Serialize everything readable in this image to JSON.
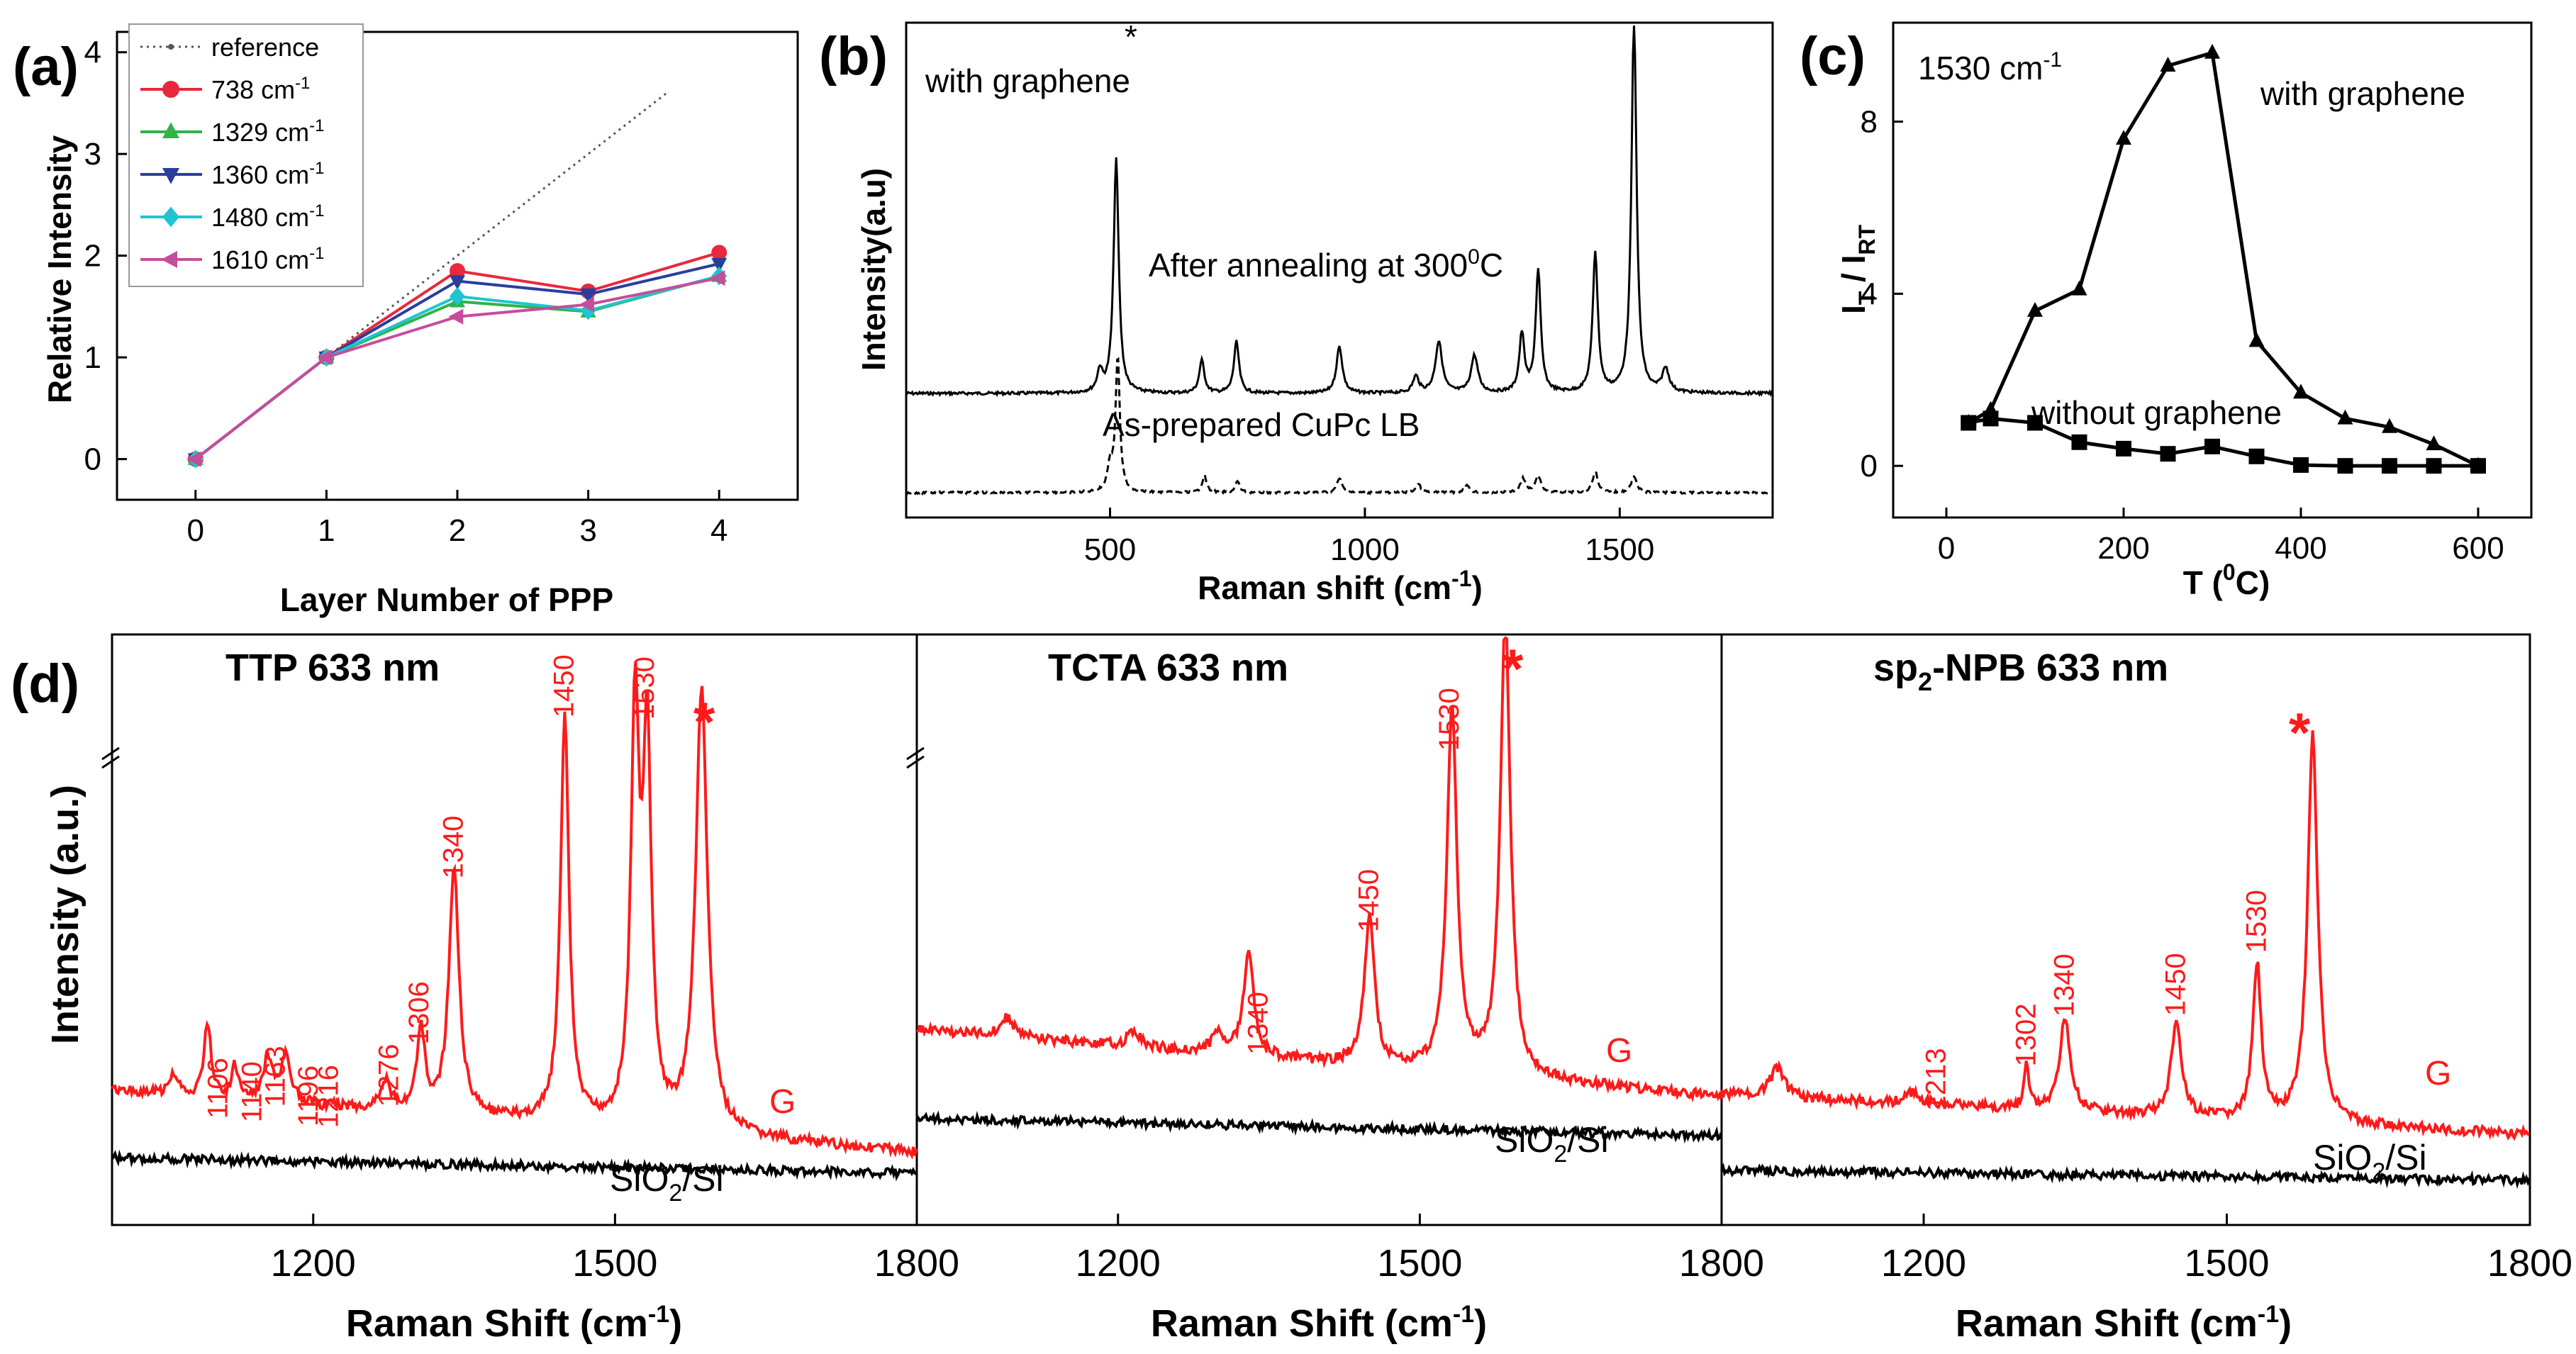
{
  "panels": {
    "a": {
      "label": "(a)"
    },
    "b": {
      "label": "(b)"
    },
    "c": {
      "label": "(c)"
    },
    "d": {
      "label": "(d)"
    }
  },
  "chart_data": [
    {
      "id": "a",
      "type": "line",
      "xlabel": "Layer Number of PPP",
      "ylabel": "Relative Intensity",
      "xlim": [
        -0.6,
        4.6
      ],
      "ylim": [
        -0.4,
        4.2
      ],
      "xticks": [
        0,
        1,
        2,
        3,
        4
      ],
      "yticks": [
        0,
        1,
        2,
        3,
        4
      ],
      "legend_position": "top-left",
      "reference": {
        "name": "reference",
        "x": [
          0,
          3.6
        ],
        "y": [
          0,
          3.6
        ],
        "color": "#555555"
      },
      "x": [
        0,
        1,
        2,
        3,
        4
      ],
      "series": [
        {
          "name": "738 cm",
          "sup": "-1",
          "marker": "circle",
          "color": "#e8283c",
          "values": [
            0,
            1,
            1.85,
            1.65,
            2.03
          ]
        },
        {
          "name": "1329 cm",
          "sup": "-1",
          "marker": "triangle-up",
          "color": "#2fb34a",
          "values": [
            0,
            1,
            1.55,
            1.45,
            1.8
          ]
        },
        {
          "name": "1360 cm",
          "sup": "-1",
          "marker": "triangle-down",
          "color": "#2a3e9c",
          "values": [
            0,
            1,
            1.75,
            1.62,
            1.92
          ]
        },
        {
          "name": "1480 cm",
          "sup": "-1",
          "marker": "diamond",
          "color": "#1fc4cf",
          "values": [
            0,
            1,
            1.6,
            1.46,
            1.8
          ]
        },
        {
          "name": "1610 cm",
          "sup": "-1",
          "marker": "triangle-left",
          "color": "#c64c9c",
          "values": [
            0,
            1,
            1.4,
            1.52,
            1.78
          ]
        }
      ]
    },
    {
      "id": "b",
      "type": "line",
      "xlabel": "Raman shift (cm",
      "xlabel_sup": "-1",
      "xlabel_end": ")",
      "ylabel": "Intensity(a.u)",
      "xlim": [
        100,
        1800
      ],
      "xticks": [
        500,
        1000,
        1500
      ],
      "annotations": {
        "with_graphene": "with graphene",
        "after_annealing": "After annealing at 300",
        "after_sup": "0",
        "after_end": "C",
        "as_prepared": "As-prepared CuPc LB",
        "star": "*"
      },
      "series": [
        {
          "name": "After annealing at 300°C",
          "style": "solid",
          "baseline": 0.0,
          "peaks": [
            [
              512,
              1.0,
              6
            ],
            [
              480,
              0.09,
              6
            ],
            [
              680,
              0.14,
              6
            ],
            [
              748,
              0.22,
              6
            ],
            [
              950,
              0.2,
              7
            ],
            [
              1100,
              0.07,
              7
            ],
            [
              1145,
              0.22,
              8
            ],
            [
              1215,
              0.16,
              8
            ],
            [
              1308,
              0.25,
              6
            ],
            [
              1340,
              0.52,
              6
            ],
            [
              1452,
              0.6,
              6
            ],
            [
              1528,
              1.6,
              6
            ],
            [
              1590,
              0.1,
              8
            ]
          ]
        },
        {
          "name": "As-prepared CuPc LB",
          "style": "dashed",
          "baseline": 0.0,
          "peaks": [
            [
              500,
              0.18,
              6
            ],
            [
              515,
              0.95,
              5
            ],
            [
              685,
              0.12,
              5
            ],
            [
              750,
              0.08,
              5
            ],
            [
              950,
              0.1,
              6
            ],
            [
              1105,
              0.06,
              6
            ],
            [
              1200,
              0.05,
              6
            ],
            [
              1310,
              0.1,
              6
            ],
            [
              1340,
              0.12,
              6
            ],
            [
              1452,
              0.15,
              6
            ],
            [
              1528,
              0.12,
              6
            ]
          ]
        }
      ]
    },
    {
      "id": "c",
      "type": "line",
      "title_text": "1530 cm",
      "title_sup": "-1",
      "xlabel": "T (",
      "xlabel_sup": "0",
      "xlabel_end": "C)",
      "ylabel": "I",
      "ylabel_sub1": "T",
      "ylabel_mid": " / I",
      "ylabel_sub2": "RT",
      "xlim": [
        -60,
        660
      ],
      "ylim": [
        -1.2,
        10.3
      ],
      "xticks": [
        0,
        200,
        400,
        600
      ],
      "yticks": [
        0,
        4,
        8
      ],
      "series": [
        {
          "name": "with graphene",
          "marker": "triangle-up",
          "color": "#000000",
          "x": [
            25,
            50,
            100,
            150,
            200,
            250,
            300,
            350,
            400,
            450,
            500,
            550,
            600
          ],
          "values": [
            1.0,
            1.3,
            3.6,
            4.1,
            7.6,
            9.3,
            9.6,
            2.9,
            1.7,
            1.1,
            0.9,
            0.5,
            0.0
          ]
        },
        {
          "name": "without graphene",
          "marker": "square",
          "color": "#000000",
          "x": [
            25,
            50,
            100,
            150,
            200,
            250,
            300,
            350,
            400,
            450,
            500,
            550,
            600
          ],
          "values": [
            1.0,
            1.1,
            1.0,
            0.55,
            0.4,
            0.28,
            0.45,
            0.22,
            0.02,
            0.0,
            0.0,
            0.0,
            0.0
          ]
        }
      ]
    },
    {
      "id": "d",
      "type": "line",
      "ylabel": "Intensity (a.u.)",
      "xlabel": "Raman Shift (cm",
      "xlabel_sup": "-1",
      "xlabel_end": ")",
      "xlim": [
        1000,
        1800
      ],
      "xticks": [
        1200,
        1500,
        1800
      ],
      "subpanels": [
        {
          "title": "TTP 633 nm",
          "graphene_label": "G",
          "substrate_label": "SiO",
          "substrate_sub": "2",
          "substrate_end": "/Si",
          "star": "*",
          "peak_labels": [
            "1106",
            "1140",
            "1163",
            "1196",
            "1216",
            "1276",
            "1306",
            "1340",
            "1450",
            "1530"
          ],
          "peak_positions": [
            1106,
            1140,
            1163,
            1196,
            1216,
            1276,
            1306,
            1340,
            1450,
            1530
          ],
          "peaks": [
            [
              1062,
              0.12,
              4
            ],
            [
              1095,
              0.42,
              4
            ],
            [
              1122,
              0.18,
              4
            ],
            [
              1155,
              0.25,
              5
            ],
            [
              1173,
              0.28,
              5
            ],
            [
              1272,
              0.15,
              6
            ],
            [
              1307,
              0.45,
              5
            ],
            [
              1340,
              1.4,
              6
            ],
            [
              1450,
              2.3,
              5
            ],
            [
              1520,
              2.3,
              5
            ],
            [
              1532,
              2.1,
              5
            ],
            [
              1586,
              2.5,
              7
            ]
          ],
          "bg_start": 0.35,
          "bg_end": 0.0
        },
        {
          "title": "TCTA 633 nm",
          "graphene_label": "G",
          "substrate_label": "SiO",
          "substrate_sub": "2",
          "substrate_end": "/Si",
          "star": "*",
          "peak_labels": [
            "1340",
            "1450",
            "1530"
          ],
          "peak_positions": [
            1340,
            1450,
            1530
          ],
          "peaks": [
            [
              1090,
              0.1,
              8
            ],
            [
              1216,
              0.08,
              8
            ],
            [
              1300,
              0.1,
              8
            ],
            [
              1330,
              0.55,
              6
            ],
            [
              1450,
              0.78,
              6
            ],
            [
              1532,
              1.9,
              6
            ],
            [
              1585,
              2.4,
              6
            ]
          ],
          "bg_start": 0.4,
          "bg_end": 0.05
        },
        {
          "title": "sp",
          "title_sub": "2",
          "title_end": "-NPB 633 nm",
          "graphene_label": "G",
          "substrate_label": "SiO",
          "substrate_sub": "2",
          "substrate_end": "/Si",
          "star": "*",
          "peak_labels": [
            "1213",
            "1302",
            "1340",
            "1450",
            "1530"
          ],
          "peak_positions": [
            1213,
            1302,
            1340,
            1450,
            1530
          ],
          "peaks": [
            [
              1055,
              0.15,
              8
            ],
            [
              1190,
              0.06,
              8
            ],
            [
              1302,
              0.22,
              3
            ],
            [
              1340,
              0.48,
              6
            ],
            [
              1450,
              0.48,
              6
            ],
            [
              1530,
              0.78,
              5
            ],
            [
              1585,
              1.95,
              6
            ]
          ],
          "bg_start": 0.2,
          "bg_end": 0.0
        }
      ]
    }
  ]
}
